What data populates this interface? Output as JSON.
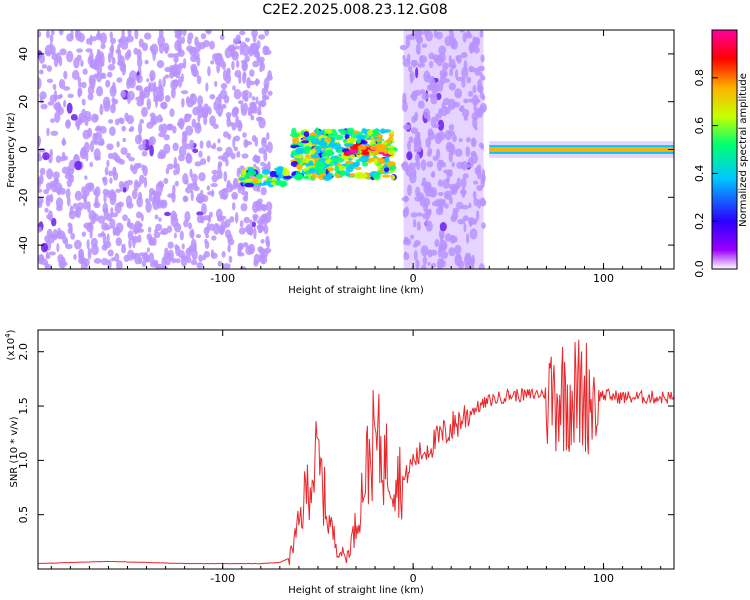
{
  "figure_title": "C2E2.2025.008.23.12.G08",
  "chart_data": [
    {
      "type": "heatmap",
      "title": "C2E2.2025.008.23.12.G08",
      "xlabel": "Height of straight line (km)",
      "ylabel": "Frequency (Hz)",
      "xlim": [
        -197,
        137
      ],
      "ylim": [
        -50,
        50
      ],
      "x_ticks": [
        -100,
        0,
        100
      ],
      "y_ticks": [
        -40,
        -20,
        0,
        20,
        40
      ],
      "colorbar": {
        "label": "Normalized spectral amplitude",
        "range": [
          0,
          1
        ],
        "ticks": [
          "0.0",
          "0.2",
          "0.4",
          "0.6",
          "0.8"
        ],
        "colors": [
          "#ffffff",
          "#9b00ff",
          "#2a00ff",
          "#00c8ff",
          "#00ff70",
          "#c8ff00",
          "#ffb000",
          "#ff0000",
          "#ff00a0"
        ]
      },
      "features": [
        {
          "region": "noise",
          "x_range": [
            -197,
            -75
          ],
          "freq_range": [
            -50,
            50
          ],
          "amplitude": 0.15
        },
        {
          "region": "chirp",
          "x_range": [
            -90,
            -65
          ],
          "freq_range": [
            -15,
            -8
          ],
          "amplitude": 0.5
        },
        {
          "region": "signal",
          "x_range": [
            -63,
            -10
          ],
          "freq_range": [
            -12,
            8
          ],
          "amplitude": 0.55
        },
        {
          "region": "signal-core",
          "x_range": [
            -35,
            -10
          ],
          "freq_range": [
            -2,
            2
          ],
          "amplitude": 0.8
        },
        {
          "region": "noise-band",
          "x_range": [
            -5,
            37
          ],
          "freq_range": [
            -50,
            50
          ],
          "amplitude": 0.15
        },
        {
          "region": "tone",
          "x_range": [
            40,
            137
          ],
          "freq_range": [
            -1,
            1
          ],
          "amplitude": 0.75
        }
      ]
    },
    {
      "type": "line",
      "xlabel": "Height of straight line (km)",
      "ylabel": "SNR (10 * v/v)",
      "y_scale_label": "(x10^4)",
      "y_multiplier_text": "(x10",
      "y_multiplier_exp": "4",
      "y_multiplier_close": ")",
      "xlim": [
        -197,
        137
      ],
      "ylim": [
        0,
        2.2
      ],
      "x_ticks": [
        -100,
        0,
        100
      ],
      "y_ticks": [
        "0.5",
        "1.0",
        "1.5",
        "2.0"
      ],
      "color": "#e8272a",
      "series": [
        {
          "x": [
            -197,
            -180,
            -160,
            -140,
            -120,
            -100,
            -80,
            -70,
            -65,
            -60,
            -55,
            -50,
            -45,
            -40,
            -35,
            -30,
            -25,
            -20,
            -15,
            -10,
            -5,
            0,
            10,
            20,
            30,
            40,
            50,
            60,
            70,
            80,
            90,
            95,
            100,
            110,
            120,
            137
          ],
          "y": [
            0.05,
            0.06,
            0.07,
            0.06,
            0.05,
            0.05,
            0.05,
            0.06,
            0.1,
            0.4,
            0.8,
            1.0,
            0.5,
            0.2,
            0.1,
            0.4,
            0.9,
            1.2,
            1.0,
            0.9,
            0.8,
            1.0,
            1.15,
            1.3,
            1.45,
            1.55,
            1.6,
            1.6,
            1.62,
            1.62,
            1.6,
            1.6,
            1.6,
            1.58,
            1.58,
            1.58
          ]
        }
      ]
    }
  ]
}
